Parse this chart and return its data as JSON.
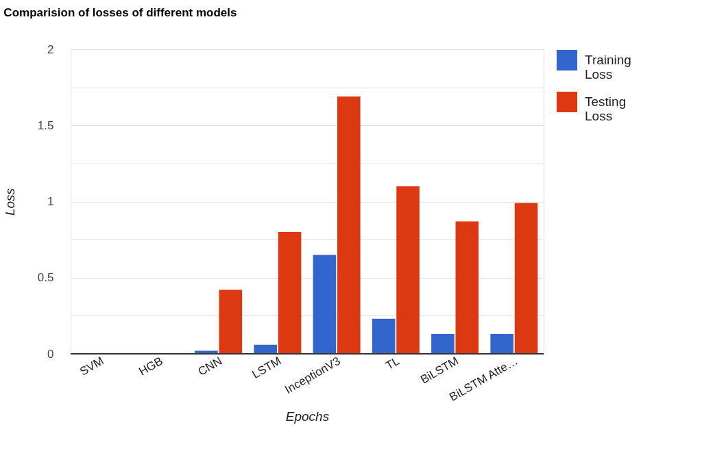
{
  "chart_data": {
    "type": "bar",
    "title": "Comparision of losses of different models",
    "xlabel": "Epochs",
    "ylabel": "Loss",
    "categories": [
      "SVM",
      "HGB",
      "CNN",
      "LSTM",
      "InceptionV3",
      "TL",
      "BiLSTM",
      "BiLSTM Atte…"
    ],
    "series": [
      {
        "name": "Training Loss",
        "color": "#3366cc",
        "values": [
          0,
          0,
          0.02,
          0.06,
          0.65,
          0.23,
          0.13,
          0.13
        ]
      },
      {
        "name": "Testing Loss",
        "color": "#dc3912",
        "values": [
          0,
          0,
          0.42,
          0.8,
          1.69,
          1.1,
          0.87,
          0.99
        ]
      }
    ],
    "ylim": [
      0,
      2
    ],
    "yticks": [
      0,
      {
        "value": 0.25,
        "label": null
      },
      0.5,
      {
        "value": 0.75,
        "label": null
      },
      1,
      {
        "value": 1.25,
        "label": null
      },
      1.5,
      {
        "value": 1.75,
        "label": null
      },
      2
    ],
    "grid": "y",
    "legend": "top right"
  }
}
